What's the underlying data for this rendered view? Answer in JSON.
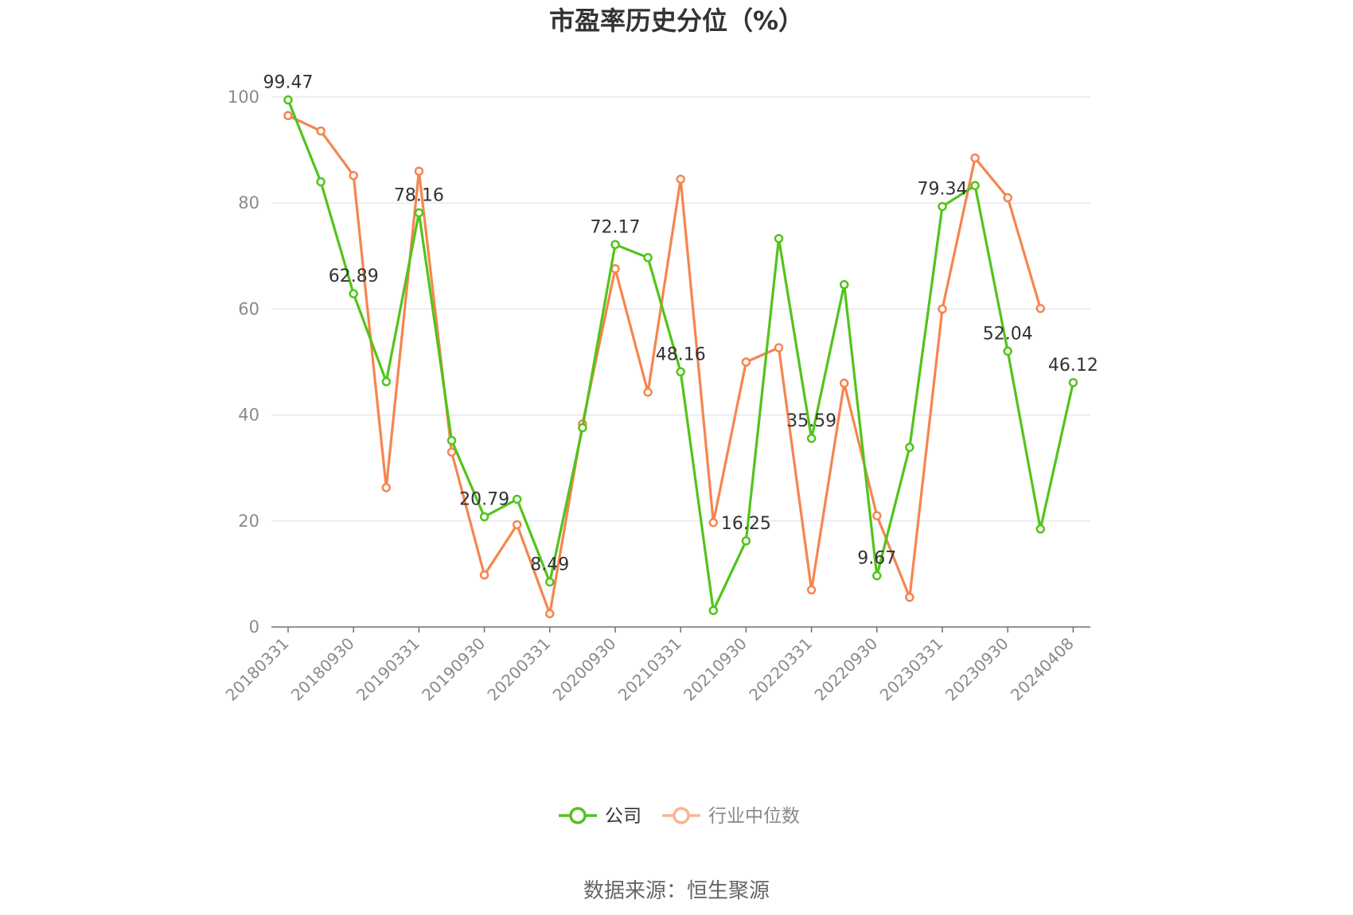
{
  "chart_data": {
    "type": "line",
    "title": "市盈率历史分位（%）",
    "source": "数据来源：恒生聚源",
    "ylim": [
      0,
      100
    ],
    "yticks": [
      0,
      20,
      40,
      60,
      80,
      100
    ],
    "x_tick_labels": [
      "20180331",
      "20180930",
      "20190331",
      "20190930",
      "20200331",
      "20200930",
      "20210331",
      "20210930",
      "20220331",
      "20220930",
      "20230331",
      "20230930",
      "20240408"
    ],
    "legend_placement": "bottom-center",
    "grid": true,
    "series": [
      {
        "name": "公司",
        "color": "#52c41a",
        "values": [
          99.47,
          84.0,
          62.89,
          46.3,
          78.16,
          35.2,
          20.79,
          24.1,
          8.49,
          37.6,
          72.17,
          69.7,
          48.16,
          3.1,
          16.25,
          73.3,
          35.59,
          64.6,
          9.67,
          33.9,
          79.34,
          83.3,
          52.04,
          18.5,
          46.12
        ],
        "labels": [
          "99.47",
          "",
          "62.89",
          "",
          "78.16",
          "",
          "20.79",
          "",
          "8.49",
          "",
          "72.17",
          "",
          "48.16",
          "",
          "16.25",
          "",
          "35.59",
          "",
          "9.67",
          "",
          "79.34",
          "",
          "52.04",
          "",
          "46.12"
        ]
      },
      {
        "name": "行业中位数",
        "color": "#f5854f",
        "values": [
          96.5,
          93.6,
          85.2,
          26.3,
          86.0,
          33.0,
          9.8,
          19.3,
          2.5,
          38.3,
          67.6,
          44.3,
          84.5,
          19.7,
          50.0,
          52.7,
          7.0,
          46.0,
          21.0,
          5.6,
          60.0,
          88.5,
          81.0,
          60.1,
          null
        ]
      }
    ]
  }
}
